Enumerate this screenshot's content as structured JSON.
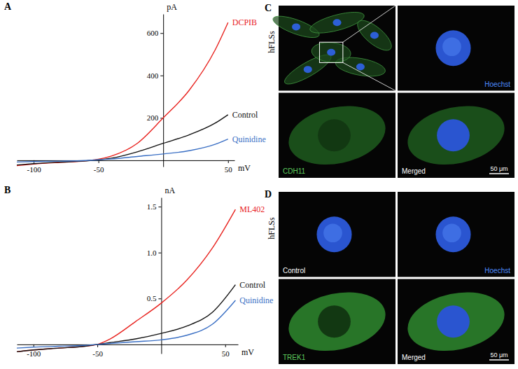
{
  "chart_data": [
    {
      "type": "line",
      "panel_label": "A",
      "x_label": "mV",
      "y_label": "pA",
      "x": [
        -113,
        -100,
        -80,
        -60,
        -50,
        -40,
        -20,
        0,
        20,
        40,
        50
      ],
      "xlim": [
        -113,
        55
      ],
      "ylim": [
        -30,
        690
      ],
      "xticks": [
        -100,
        -50,
        50
      ],
      "yticks": [
        200,
        400,
        600
      ],
      "series": [
        {
          "name": "DCPIB",
          "color": "#e8221e",
          "values": [
            -25,
            -18,
            -10,
            -3,
            5,
            20,
            80,
            200,
            330,
            520,
            650
          ]
        },
        {
          "name": "Control",
          "color": "#111111",
          "values": [
            -22,
            -16,
            -9,
            -3,
            2,
            10,
            40,
            80,
            120,
            175,
            215
          ]
        },
        {
          "name": "Quinidine",
          "color": "#3a6fc4",
          "values": [
            -8,
            -6,
            -4,
            -1,
            2,
            6,
            18,
            30,
            45,
            75,
            100
          ]
        }
      ]
    },
    {
      "type": "line",
      "panel_label": "B",
      "x_label": "mV",
      "y_label": "nA",
      "x": [
        -113,
        -100,
        -80,
        -60,
        -50,
        -40,
        -20,
        0,
        20,
        40,
        58
      ],
      "xlim": [
        -113,
        60
      ],
      "ylim": [
        -0.1,
        1.6
      ],
      "xticks": [
        -100,
        -50,
        50
      ],
      "yticks": [
        0.5,
        {
          "value": 1,
          "label": "1.0"
        },
        1.5
      ],
      "series": [
        {
          "name": "ML402",
          "color": "#e8221e",
          "values": [
            -0.08,
            -0.06,
            -0.04,
            -0.02,
            0,
            0.06,
            0.25,
            0.45,
            0.7,
            1.05,
            1.47
          ]
        },
        {
          "name": "Control",
          "color": "#111111",
          "values": [
            -0.08,
            -0.06,
            -0.04,
            -0.02,
            0,
            0.02,
            0.06,
            0.12,
            0.2,
            0.35,
            0.65
          ]
        },
        {
          "name": "Quinidine",
          "color": "#3a6fc4",
          "values": [
            -0.04,
            -0.03,
            -0.02,
            -0.01,
            0,
            0.01,
            0.03,
            0.05,
            0.1,
            0.22,
            0.48
          ]
        }
      ]
    }
  ],
  "panels": [
    {
      "letter": "C",
      "side_label": "hFLSs",
      "scale_bar": "50 μm",
      "tiles": [
        {
          "kind": "overview"
        },
        {
          "kind": "nucleus",
          "label": "Hoechst",
          "color": "#4d8cff"
        },
        {
          "kind": "cell",
          "label": "CDH11",
          "color": "#5fcf5f"
        },
        {
          "kind": "merged",
          "label": "Merged",
          "color": "#ffffff"
        }
      ]
    },
    {
      "letter": "D",
      "side_label": "hFLSs",
      "scale_bar": "50 μm",
      "tiles": [
        {
          "kind": "nucleus",
          "label": "Control",
          "color": "#ffffff"
        },
        {
          "kind": "nucleus",
          "label": "Hoechst",
          "color": "#4d8cff"
        },
        {
          "kind": "cell",
          "label": "TREK1",
          "color": "#5fcf5f"
        },
        {
          "kind": "merged",
          "label": "Merged",
          "color": "#ffffff"
        }
      ]
    }
  ]
}
